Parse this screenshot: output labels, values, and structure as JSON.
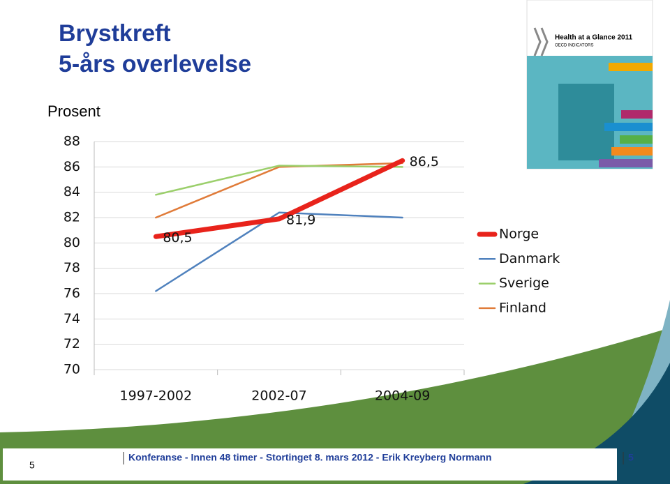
{
  "chart_data": {
    "type": "line",
    "title": "Brystkreft",
    "subtitle": "5-års overlevelse",
    "y_label": "Prosent",
    "categories": [
      "1997-2002",
      "2002-07",
      "2004-09"
    ],
    "series": [
      {
        "name": "Norge",
        "color": "#e8231b",
        "values": [
          80.5,
          81.9,
          86.5
        ],
        "value_labels": [
          "80,5",
          "81,9",
          "86,5"
        ]
      },
      {
        "name": "Danmark",
        "color": "#4f81bd",
        "values": [
          76.2,
          82.4,
          82.0
        ]
      },
      {
        "name": "Sverige",
        "color": "#9bcf6b",
        "values": [
          83.8,
          86.1,
          86.0
        ]
      },
      {
        "name": "Finland",
        "color": "#e07b39",
        "values": [
          82.0,
          86.0,
          86.3
        ]
      }
    ],
    "ylim": [
      70,
      88
    ],
    "yticks": [
      70,
      72,
      74,
      76,
      78,
      80,
      82,
      84,
      86,
      88
    ],
    "grid": true,
    "legend": "right"
  },
  "cover": {
    "title": "Health at a Glance 2011",
    "subtitle": "OECD INDICATORS"
  },
  "footer": {
    "slide_number": "5",
    "text": "Konferanse - Innen 48 timer - Stortinget 8. mars 2012 - Erik Kreyberg Normann",
    "page": "5"
  }
}
